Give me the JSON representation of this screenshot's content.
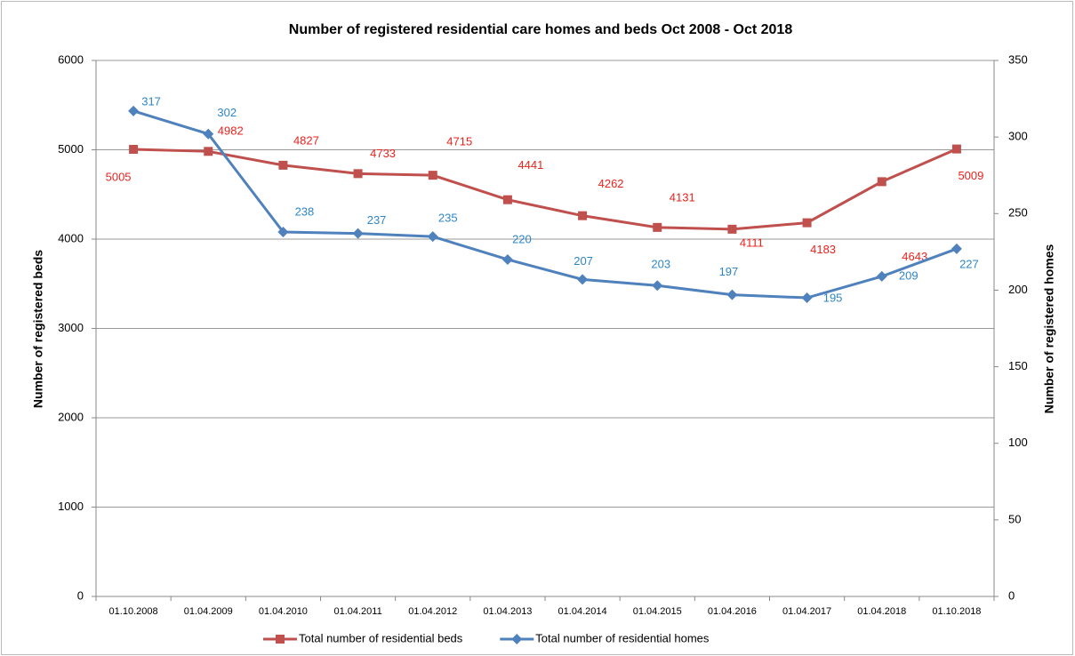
{
  "chart_data": {
    "type": "line",
    "title": "Number of registered residential care homes and beds Oct 2008 - Oct 2018",
    "y_label": "Number of registered beds",
    "y2_label": "Number of registered homes",
    "categories": [
      "01.10.2008",
      "01.04.2009",
      "01.04.2010",
      "01.04.2011",
      "01.04.2012",
      "01.04.2013",
      "01.04.2014",
      "01.04.2015",
      "01.04.2016",
      "01.04.2017",
      "01.04.2018",
      "01.10.2018"
    ],
    "series": [
      {
        "name": "Total number of residential beds",
        "color": "#c0504d",
        "label_color": "#e8231e",
        "marker": "square",
        "values": [
          5005,
          4982,
          4827,
          4733,
          4715,
          4441,
          4262,
          4131,
          4111,
          4183,
          4643,
          5009
        ]
      },
      {
        "name": "Total number of residential homes",
        "color": "#4f81bd",
        "label_color": "#2e86c8",
        "marker": "diamond",
        "axis": "y2",
        "values": [
          317,
          302,
          238,
          237,
          235,
          220,
          207,
          203,
          197,
          195,
          209,
          227
        ]
      }
    ],
    "ylim": [
      0,
      6000
    ],
    "yticks": [
      0,
      1000,
      2000,
      3000,
      4000,
      5000,
      6000
    ],
    "y2lim": [
      0,
      350
    ],
    "y2ticks": [
      0,
      50,
      100,
      150,
      200,
      250,
      300,
      350
    ],
    "grid": true,
    "legend": "bottom"
  }
}
